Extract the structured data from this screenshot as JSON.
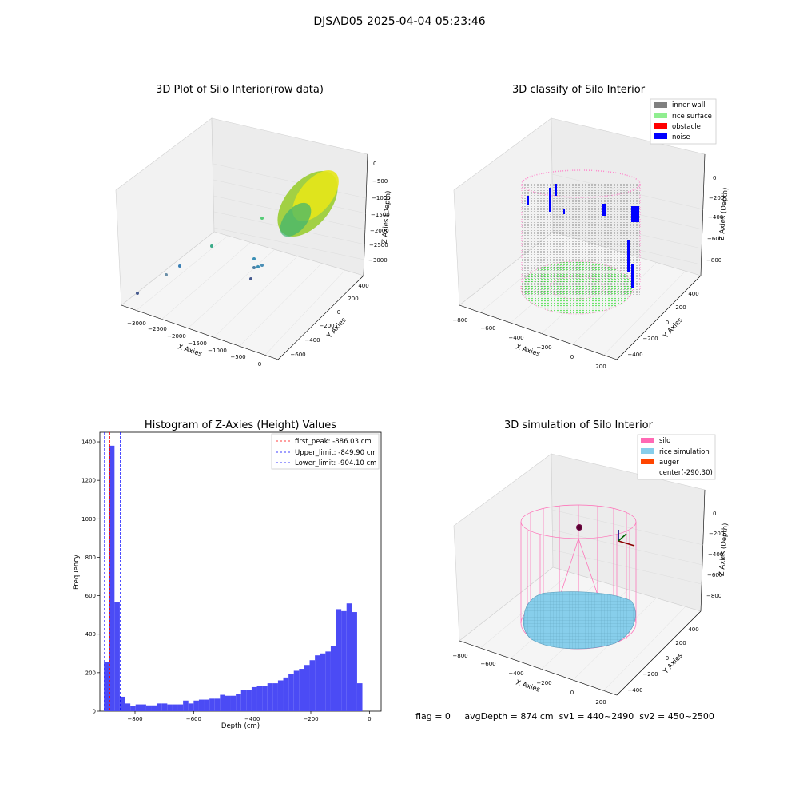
{
  "suptitle": "DJSAD05 2025-04-04 05:23:46",
  "status_line": "flag = 0     avgDepth = 874 cm  sv1 = 440~2490  sv2 = 450~2500",
  "colors": {
    "inner_wall": "#808080",
    "rice_surface": "#90ee90",
    "obstacle": "#ff0000",
    "noise": "#0000ff",
    "silo": "#ff69b4",
    "rice_simulation": "#87ceeb",
    "auger": "#ff4500",
    "hist_bar": "#4b4bf5",
    "first_peak": "#ff0000",
    "limits": "#0000ff"
  },
  "panels": {
    "raw": {
      "title": "3D Plot of Silo Interior(row data)",
      "xlabel": "X Axies",
      "ylabel": "Y Axies",
      "zlabel": "Z Axies (Depth)",
      "xticks": [
        "−3000",
        "−2500",
        "−2000",
        "−1500",
        "−1000",
        "−500",
        "0"
      ],
      "yticks": [
        "400",
        "200",
        "0",
        "−200",
        "−400",
        "−600"
      ],
      "zticks": [
        "0",
        "−500",
        "−1000",
        "−1500",
        "−2000",
        "−2500",
        "−3000"
      ]
    },
    "classify": {
      "title": "3D classify of Silo Interior",
      "xlabel": "X Axies",
      "ylabel": "Y Axies",
      "zlabel": "Z Axies (Depth)",
      "xticks": [
        "−800",
        "−600",
        "−400",
        "−200",
        "0",
        "200"
      ],
      "yticks": [
        "400",
        "200",
        "0",
        "−200",
        "−400"
      ],
      "zticks": [
        "0",
        "−200",
        "−400",
        "−600",
        "−800"
      ],
      "legend": [
        "inner wall",
        "rice surface",
        "obstacle",
        "noise"
      ]
    },
    "simulation": {
      "title": "3D simulation of Silo Interior",
      "xlabel": "X Axies",
      "ylabel": "Y Axies",
      "zlabel": "Z Axies (Depth)",
      "xticks": [
        "−800",
        "−600",
        "−400",
        "−200",
        "0",
        "200"
      ],
      "yticks": [
        "400",
        "200",
        "0",
        "−200",
        "−400"
      ],
      "zticks": [
        "0",
        "−200",
        "−400",
        "−600",
        "−800"
      ],
      "legend": [
        "silo",
        "rice simulation",
        "auger",
        "center(-290,30)"
      ]
    }
  },
  "chart_data": {
    "type": "bar",
    "title": "Histogram of Z-Axies (Height) Values",
    "xlabel": "Depth (cm)",
    "ylabel": "Frequency",
    "xlim": [
      -920,
      40
    ],
    "ylim": [
      0,
      1450
    ],
    "xticks": [
      -800,
      -600,
      -400,
      -200,
      0
    ],
    "yticks": [
      0,
      200,
      400,
      600,
      800,
      1000,
      1200,
      1400
    ],
    "bin_width": 18,
    "bin_start": -906,
    "values": [
      255,
      1380,
      565,
      75,
      40,
      25,
      35,
      35,
      30,
      30,
      40,
      40,
      35,
      35,
      35,
      55,
      40,
      55,
      60,
      60,
      65,
      65,
      85,
      80,
      80,
      90,
      110,
      110,
      125,
      130,
      130,
      145,
      145,
      160,
      175,
      195,
      210,
      220,
      240,
      265,
      290,
      300,
      310,
      340,
      530,
      520,
      560,
      515,
      145
    ],
    "lines": [
      {
        "name": "first_peak: -886.03 cm",
        "x": -886.03,
        "style": "dashed",
        "color": "red"
      },
      {
        "name": "Upper_limit: -849.90 cm",
        "x": -849.9,
        "style": "dashed",
        "color": "blue"
      },
      {
        "name": "Lower_limit: -904.10 cm",
        "x": -904.1,
        "style": "dashed",
        "color": "blue"
      }
    ]
  }
}
